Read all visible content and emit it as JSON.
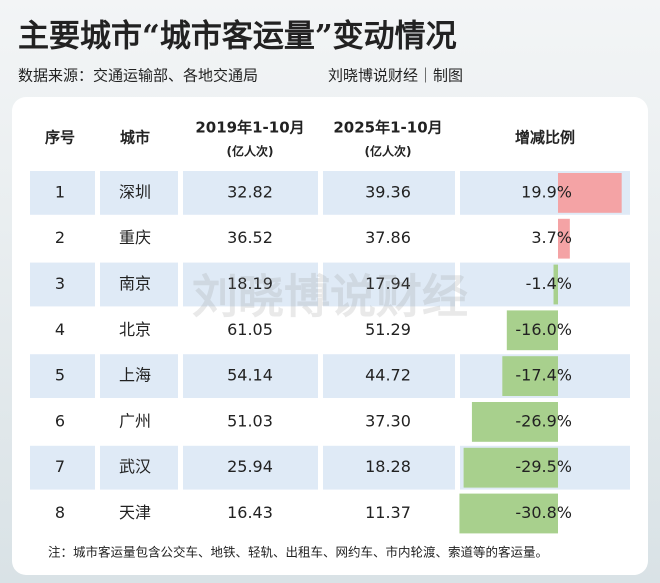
{
  "title": "主要城市“城市客运量”变动情况",
  "subtitle": "数据来源：交通运输部、各地交通局",
  "credit": "刘晓博说财经｜制图",
  "watermark": "刘晓博说财经",
  "table": {
    "header": [
      {
        "line1": "序号"
      },
      {
        "line1": "城市"
      },
      {
        "line1": "2019年1-10月",
        "line2": "(亿人次)"
      },
      {
        "line1": "2025年1-10月",
        "line2": "(亿人次)"
      },
      {
        "line1": "增减比例"
      }
    ],
    "rows": [
      {
        "no": "1",
        "city": "深圳",
        "y2019": "32.82",
        "y2025": "39.36",
        "change": 19.9,
        "change_label": "19.9%"
      },
      {
        "no": "2",
        "city": "重庆",
        "y2019": "36.52",
        "y2025": "37.86",
        "change": 3.7,
        "change_label": "3.7%"
      },
      {
        "no": "3",
        "city": "南京",
        "y2019": "18.19",
        "y2025": "17.94",
        "change": -1.4,
        "change_label": "-1.4%"
      },
      {
        "no": "4",
        "city": "北京",
        "y2019": "61.05",
        "y2025": "51.29",
        "change": -16.0,
        "change_label": "-16.0%"
      },
      {
        "no": "5",
        "city": "上海",
        "y2019": "54.14",
        "y2025": "44.72",
        "change": -17.4,
        "change_label": "-17.4%"
      },
      {
        "no": "6",
        "city": "广州",
        "y2019": "51.03",
        "y2025": "37.30",
        "change": -26.9,
        "change_label": "-26.9%"
      },
      {
        "no": "7",
        "city": "武汉",
        "y2019": "25.94",
        "y2025": "18.28",
        "change": -29.5,
        "change_label": "-29.5%"
      },
      {
        "no": "8",
        "city": "天津",
        "y2019": "16.43",
        "y2025": "11.37",
        "change": -30.8,
        "change_label": "-30.8%"
      }
    ],
    "note": "注：城市客运量包含公交车、地铁、轻轨、出租车、网约车、市内轮渡、索道等的客运量。",
    "positive_color": "#f4a3a5",
    "negative_color": "#a8d08d"
  }
}
